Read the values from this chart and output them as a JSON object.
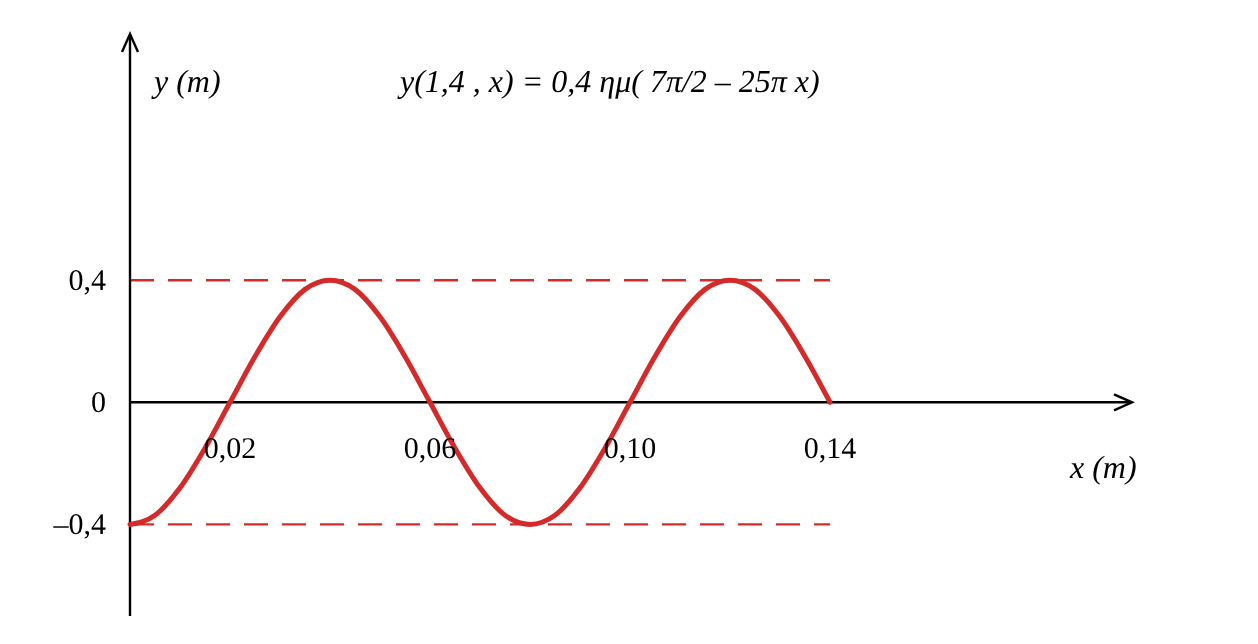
{
  "chart_data": {
    "type": "line",
    "title": "y(1,4 , x)  =  0,4 ημ( 7π/2 – 25π x)",
    "xlabel": "x (m)",
    "ylabel": "y (m)",
    "x": [
      0,
      0.005,
      0.01,
      0.015,
      0.02,
      0.025,
      0.03,
      0.035,
      0.04,
      0.045,
      0.05,
      0.055,
      0.06,
      0.065,
      0.07,
      0.075,
      0.08,
      0.085,
      0.09,
      0.095,
      0.1,
      0.105,
      0.11,
      0.115,
      0.12,
      0.125,
      0.13,
      0.135,
      0.14
    ],
    "series": [
      {
        "color": "#d42a2a",
        "values": [
          -0.4,
          -0.37,
          -0.28,
          -0.15,
          0,
          0.15,
          0.28,
          0.37,
          0.4,
          0.37,
          0.28,
          0.15,
          0,
          -0.15,
          -0.28,
          -0.37,
          -0.4,
          -0.37,
          -0.28,
          -0.15,
          0,
          0.15,
          0.28,
          0.37,
          0.4,
          0.37,
          0.28,
          0.15,
          0
        ]
      }
    ],
    "xlim": [
      0,
      0.2
    ],
    "ylim": [
      -0.7,
      1.2
    ],
    "xticks": [
      {
        "value": 0.02,
        "label": "0,02"
      },
      {
        "value": 0.06,
        "label": "0,06"
      },
      {
        "value": 0.1,
        "label": "0,10"
      },
      {
        "value": 0.14,
        "label": "0,14"
      }
    ],
    "yticks": [
      {
        "value": -0.4,
        "label": "–0,4"
      },
      0,
      {
        "value": 0.4,
        "label": "0,4"
      }
    ],
    "ref_lines": [
      {
        "axis": "y",
        "value": 0.4,
        "color": "#d42a2a",
        "line_style": "dashed"
      },
      {
        "axis": "y",
        "value": -0.4,
        "color": "#d42a2a",
        "line_style": "dashed"
      }
    ]
  }
}
